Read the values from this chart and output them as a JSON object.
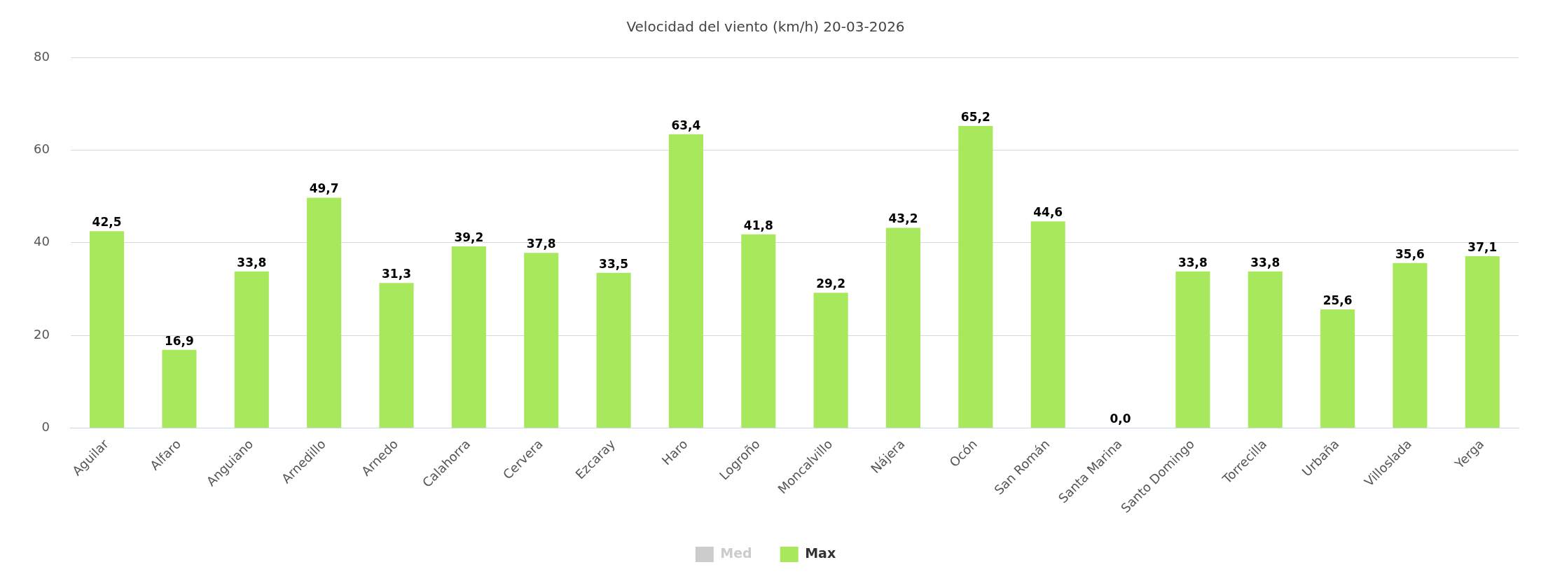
{
  "chart_data": {
    "type": "bar",
    "title": "Velocidad del viento (km/h) 20-03-2026",
    "categories": [
      "Aguilar",
      "Alfaro",
      "Anguiano",
      "Arnedillo",
      "Arnedo",
      "Calahorra",
      "Cervera",
      "Ezcaray",
      "Haro",
      "Logroño",
      "Moncalvillo",
      "Nájera",
      "Ocón",
      "San Román",
      "Santa Marina",
      "Santo Domingo",
      "Torrecilla",
      "Urbaña",
      "Villoslada",
      "Yerga"
    ],
    "series": [
      {
        "name": "Med",
        "color": "#cccccc",
        "values": [
          null,
          null,
          null,
          null,
          null,
          null,
          null,
          null,
          null,
          null,
          null,
          null,
          null,
          null,
          null,
          null,
          null,
          null,
          null,
          null
        ]
      },
      {
        "name": "Max",
        "color": "#a8e85c",
        "values": [
          42.5,
          16.9,
          33.8,
          49.7,
          31.3,
          39.2,
          37.8,
          33.5,
          63.4,
          41.8,
          29.2,
          43.2,
          65.2,
          44.6,
          0.0,
          33.8,
          33.8,
          25.6,
          35.6,
          37.1
        ],
        "value_labels": [
          "42,5",
          "16,9",
          "33,8",
          "49,7",
          "31,3",
          "39,2",
          "37,8",
          "33,5",
          "63,4",
          "41,8",
          "29,2",
          "43,2",
          "65,2",
          "44,6",
          "0,0",
          "33,8",
          "33,8",
          "25,6",
          "35,6",
          "37,1"
        ]
      }
    ],
    "ylim": [
      0,
      80
    ],
    "yticks": [
      0,
      20,
      40,
      60,
      80
    ],
    "grid": "y",
    "legend": "bottom"
  }
}
